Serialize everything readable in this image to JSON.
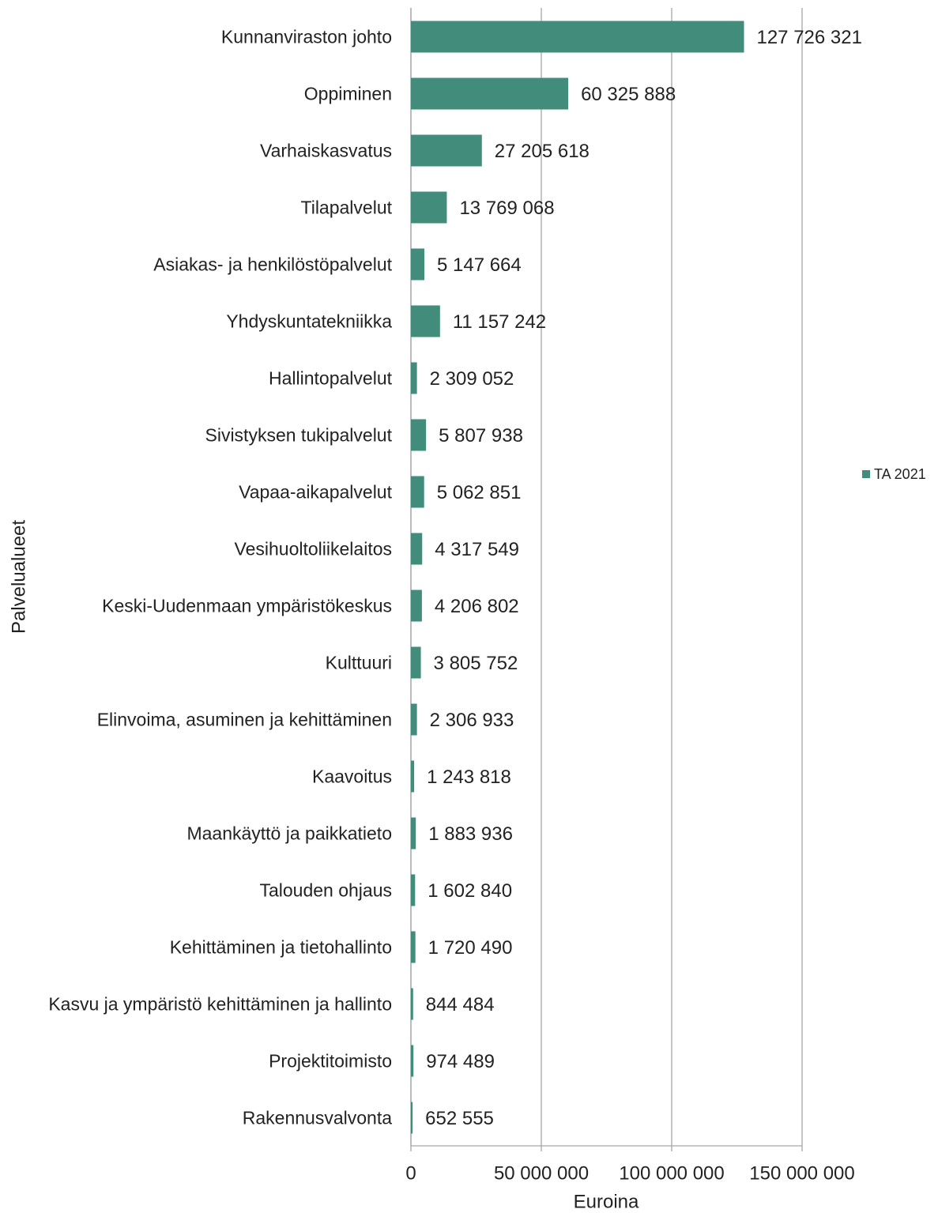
{
  "chart_data": {
    "type": "hbar",
    "categories": [
      "Kunnanviraston johto",
      "Oppiminen",
      "Varhaiskasvatus",
      "Tilapalvelut",
      "Asiakas- ja henkilöstöpalvelut",
      "Yhdyskuntatekniikka",
      "Hallintopalvelut",
      "Sivistyksen tukipalvelut",
      "Vapaa-aikapalvelut",
      "Vesihuoltoliikelaitos",
      "Keski-Uudenmaan ympäristökeskus",
      "Kulttuuri",
      "Elinvoima, asuminen ja kehittäminen",
      "Kaavoitus",
      "Maankäyttö ja paikkatieto",
      "Talouden ohjaus",
      "Kehittäminen ja tietohallinto",
      "Kasvu ja ympäristö kehittäminen ja hallinto",
      "Projektitoimisto",
      "Rakennusvalvonta"
    ],
    "series": [
      {
        "name": "TA 2021",
        "color": "#418c7a",
        "values": [
          127726321,
          60325888,
          27205618,
          13769068,
          5147664,
          11157242,
          2309052,
          5807938,
          5062851,
          4317549,
          4206802,
          3805752,
          2306933,
          1243818,
          1883936,
          1602840,
          1720490,
          844484,
          974489,
          652555
        ],
        "value_labels": [
          "127 726 321",
          "60 325 888",
          "27 205 618",
          "13 769 068",
          "5 147 664",
          "11 157 242",
          "2 309 052",
          "5 807 938",
          "5 062 851",
          "4 317 549",
          "4 206 802",
          "3 805 752",
          "2 306 933",
          "1 243 818",
          "1 883 936",
          "1 602 840",
          "1 720 490",
          "844 484",
          "974 489",
          "652 555"
        ]
      }
    ],
    "xlabel": "Euroina",
    "ylabel": "Palvelualueet",
    "xlim": [
      0,
      150000000
    ],
    "xticks": [
      0,
      {
        "value": 50000000,
        "label": "50 000 000"
      },
      {
        "value": 100000000,
        "label": "100 000 000"
      },
      {
        "value": 150000000,
        "label": "150 000 000"
      }
    ],
    "grid": true,
    "legend": "right"
  }
}
